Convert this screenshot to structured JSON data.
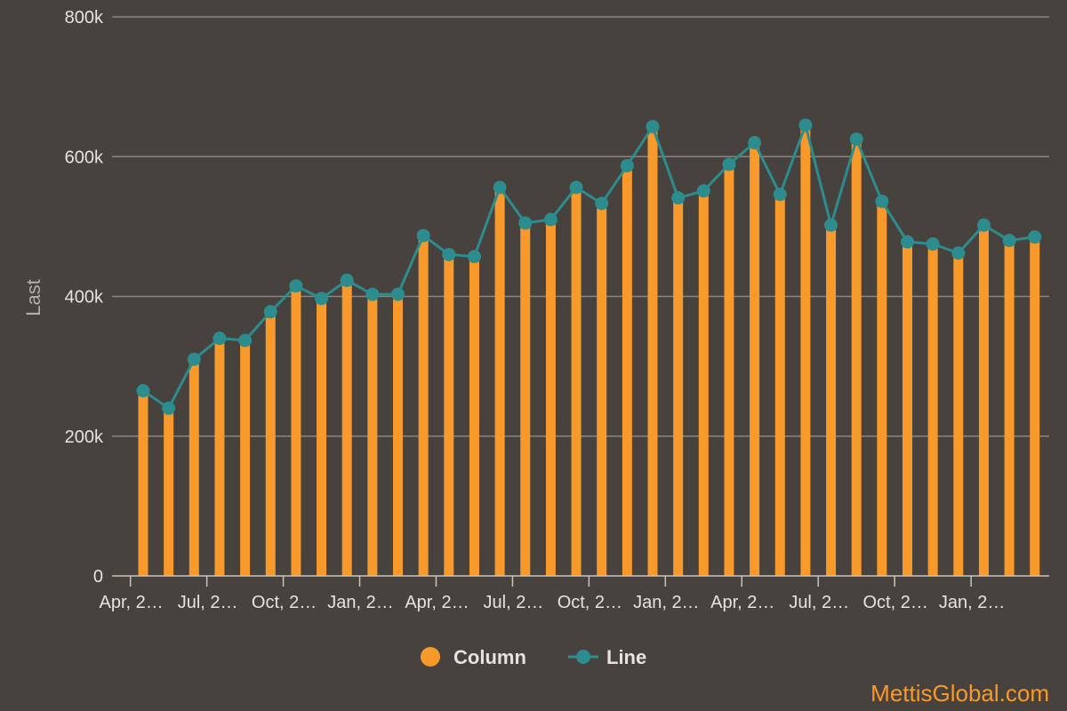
{
  "chart_data": {
    "type": "bar",
    "combo": true,
    "title": "",
    "xlabel": "",
    "ylabel": "Last",
    "ylim": [
      0,
      800000
    ],
    "yticks": [
      {
        "value": 0,
        "label": "0"
      },
      {
        "value": 200000,
        "label": "200k"
      },
      {
        "value": 400000,
        "label": "400k"
      },
      {
        "value": 600000,
        "label": "600k"
      },
      {
        "value": 800000,
        "label": "800k"
      }
    ],
    "xtick_labels": [
      {
        "index": 0,
        "label": "Apr, 2…"
      },
      {
        "index": 3,
        "label": "Jul, 2…"
      },
      {
        "index": 6,
        "label": "Oct, 2…"
      },
      {
        "index": 9,
        "label": "Jan, 2…"
      },
      {
        "index": 12,
        "label": "Apr, 2…"
      },
      {
        "index": 15,
        "label": "Jul, 2…"
      },
      {
        "index": 18,
        "label": "Oct, 2…"
      },
      {
        "index": 21,
        "label": "Jan, 2…"
      },
      {
        "index": 24,
        "label": "Apr, 2…"
      },
      {
        "index": 27,
        "label": "Jul, 2…"
      },
      {
        "index": 30,
        "label": "Oct, 2…"
      },
      {
        "index": 33,
        "label": "Jan, 2…"
      }
    ],
    "series": [
      {
        "name": "Column",
        "type": "bar",
        "color": "#f79a2b",
        "values": [
          265000,
          240000,
          310000,
          340000,
          337000,
          378000,
          415000,
          397000,
          423000,
          403000,
          403000,
          487000,
          460000,
          457000,
          556000,
          505000,
          510000,
          556000,
          533000,
          587000,
          643000,
          541000,
          551000,
          589000,
          620000,
          546000,
          645000,
          502000,
          625000,
          536000,
          478000,
          475000,
          462000,
          502000,
          480000,
          485000
        ]
      },
      {
        "name": "Line",
        "type": "line",
        "color": "#2c8c8e",
        "values": [
          265000,
          240000,
          310000,
          340000,
          337000,
          378000,
          415000,
          397000,
          423000,
          403000,
          403000,
          487000,
          460000,
          457000,
          556000,
          505000,
          510000,
          556000,
          533000,
          587000,
          643000,
          541000,
          551000,
          589000,
          620000,
          546000,
          645000,
          502000,
          625000,
          536000,
          478000,
          475000,
          462000,
          502000,
          480000,
          485000
        ]
      }
    ],
    "grid": true,
    "legend_position": "bottom-center"
  },
  "legend": {
    "column_label": "Column",
    "line_label": "Line"
  },
  "watermark": "MettisGlobal.com"
}
